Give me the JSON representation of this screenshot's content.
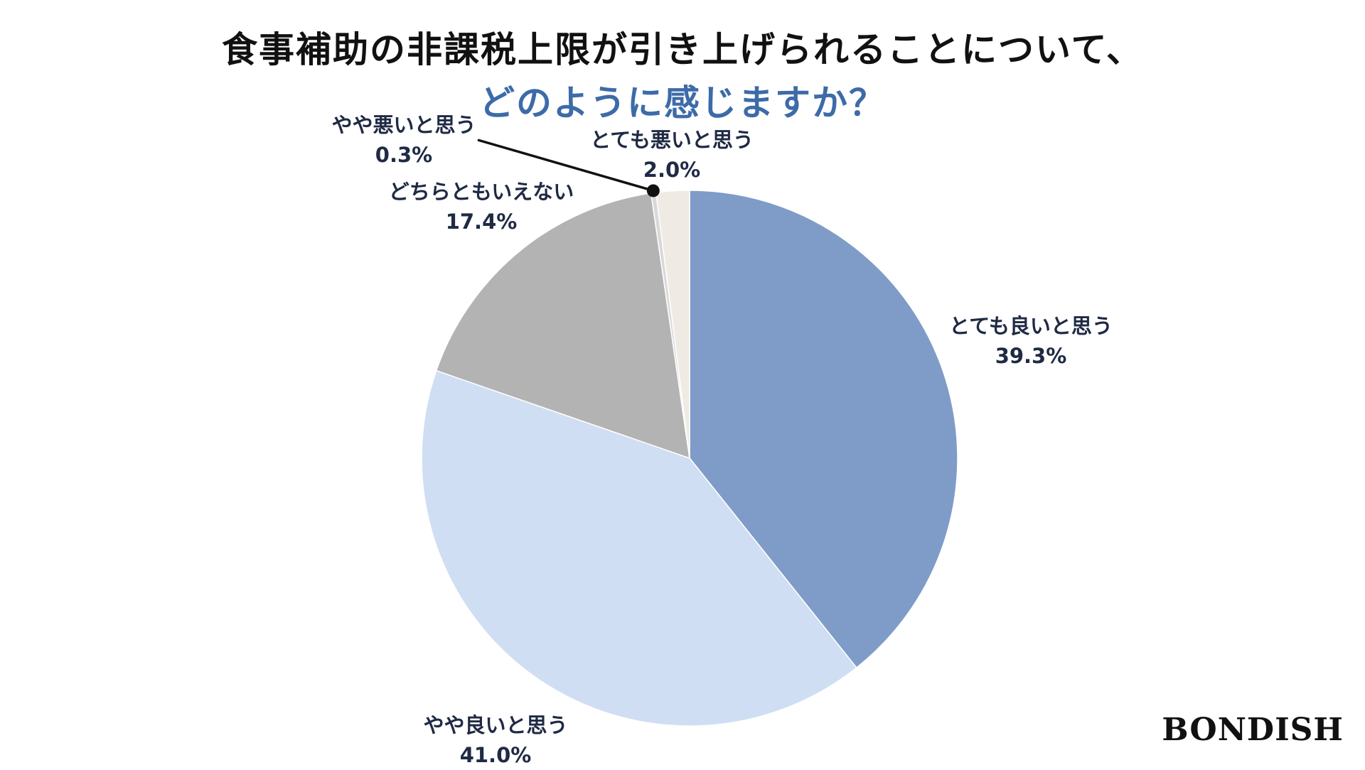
{
  "chart_data": {
    "type": "pie",
    "title": "食事補助の非課税上限が引き上げられることについて、",
    "subtitle": "どのように感じますか？",
    "start": "12 o'clock, clockwise",
    "slices": [
      {
        "label": "とても良いと思う",
        "value": 39.3,
        "value_label": "39.3%",
        "color": "#7f9cc8"
      },
      {
        "label": "やや良いと思う",
        "value": 41.0,
        "value_label": "41.0%",
        "color": "#cfdef3"
      },
      {
        "label": "どちらともいえない",
        "value": 17.4,
        "value_label": "17.4%",
        "color": "#b3b3b3"
      },
      {
        "label": "やや悪いと思う",
        "value": 0.3,
        "value_label": "0.3%",
        "color": "#d9d9d9"
      },
      {
        "label": "とても悪いと思う",
        "value": 2.0,
        "value_label": "2.0%",
        "color": "#efebe4"
      }
    ]
  },
  "brand": "BONDISH"
}
